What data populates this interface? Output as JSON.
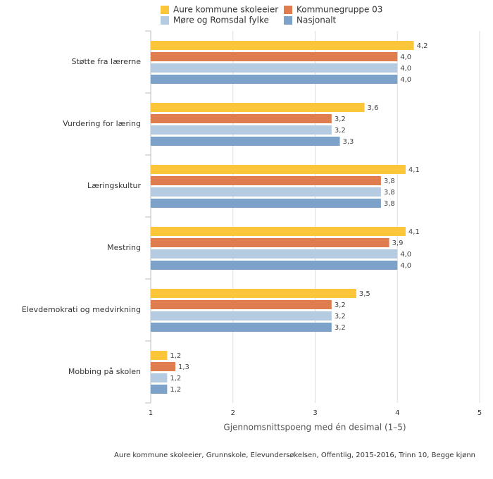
{
  "chart_data": {
    "type": "bar",
    "orientation": "horizontal",
    "categories": [
      "Støtte fra lærerne",
      "Vurdering for læring",
      "Læringskultur",
      "Mestring",
      "Elevdemokrati og medvirkning",
      "Mobbing på skolen"
    ],
    "series": [
      {
        "name": "Aure kommune skoleeier",
        "color": "#fcc63a",
        "values": [
          4.2,
          3.6,
          4.1,
          4.1,
          3.5,
          1.2
        ],
        "value_labels": [
          "4,2",
          "3,6",
          "4,1",
          "4,1",
          "3,5",
          "1,2"
        ]
      },
      {
        "name": "Kommunegruppe 03",
        "color": "#e07d4e",
        "values": [
          4.0,
          3.2,
          3.8,
          3.9,
          3.2,
          1.3
        ],
        "value_labels": [
          "4,0",
          "3,2",
          "3,8",
          "3,9",
          "3,2",
          "1,3"
        ]
      },
      {
        "name": "Møre og Romsdal fylke",
        "color": "#b5cbe2",
        "values": [
          4.0,
          3.2,
          3.8,
          4.0,
          3.2,
          1.2
        ],
        "value_labels": [
          "4,0",
          "3,2",
          "3,8",
          "4,0",
          "3,2",
          "1,2"
        ]
      },
      {
        "name": "Nasjonalt",
        "color": "#7ca2ca",
        "values": [
          4.0,
          3.3,
          3.8,
          4.0,
          3.2,
          1.2
        ],
        "value_labels": [
          "4,0",
          "3,3",
          "3,8",
          "4,0",
          "3,2",
          "1,2"
        ]
      }
    ],
    "xlim": [
      1,
      5
    ],
    "xticks": [
      1,
      2,
      3,
      4,
      5
    ],
    "grid": true,
    "x_label": "Gjennomsnittspoeng med én desimal (1–5)",
    "footnote": "Aure kommune skoleeier, Grunnskole, Elevundersøkelsen, Offentlig, 2015-2016, Trinn 10, Begge kjønn"
  }
}
